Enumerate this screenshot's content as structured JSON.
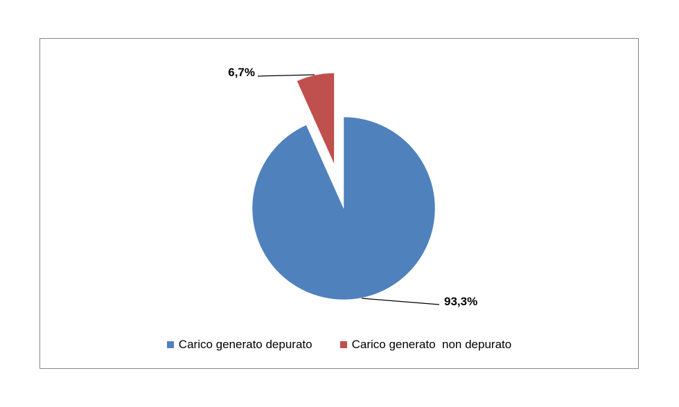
{
  "chart_data": {
    "type": "pie",
    "title": "",
    "series": [
      {
        "values": [
          93.3,
          6.7
        ],
        "labels": [
          "Carico generato depurato",
          "Carico generato  non depurato"
        ],
        "data_labels": [
          "93,3%",
          "6,7%"
        ],
        "colors": [
          "#4F81BD",
          "#C0504D"
        ],
        "exploded": [
          false,
          true
        ]
      }
    ],
    "legend": {
      "position": "bottom",
      "entries": [
        "Carico generato depurato",
        "Carico generato  non depurato"
      ]
    }
  }
}
